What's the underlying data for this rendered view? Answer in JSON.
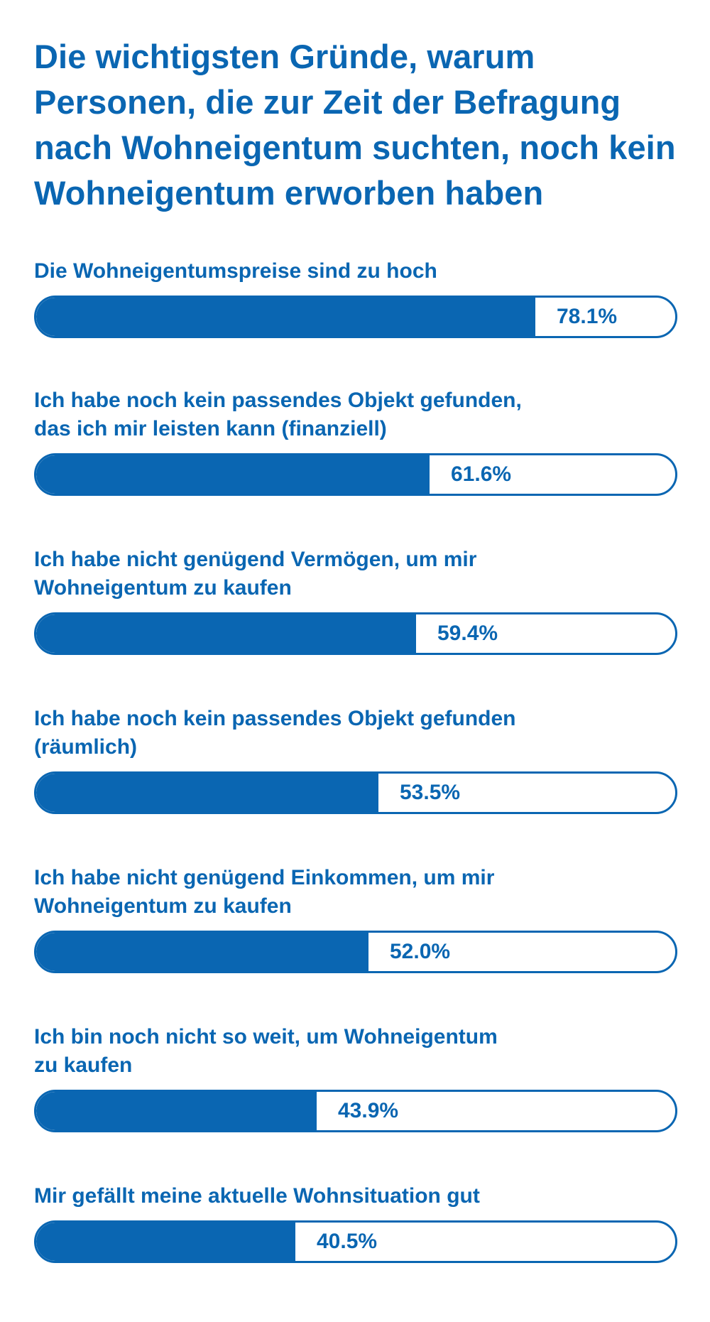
{
  "colors": {
    "accent": "#0a66b2",
    "background": "#ffffff"
  },
  "chart_data": {
    "type": "bar",
    "orientation": "horizontal",
    "title": "Die wichtigsten Gründe, warum Personen, die zur Zeit der Befragung nach Wohneigentum suchten, noch kein Wohneigentum erworben haben",
    "unit": "%",
    "xlim": [
      0,
      100
    ],
    "grid": false,
    "categories": [
      "Die Wohneigentumspreise sind zu hoch",
      "Ich habe noch kein passendes Objekt gefunden,\ndas ich mir leisten kann (finanziell)",
      "Ich habe nicht genügend Vermögen, um mir\nWohneigentum zu kaufen",
      "Ich habe noch kein passendes Objekt gefunden\n(räumlich)",
      "Ich habe nicht genügend Einkommen, um mir\nWohneigentum zu kaufen",
      "Ich bin noch nicht so weit, um Wohneigentum\nzu kaufen",
      "Mir gefällt meine aktuelle Wohnsituation gut"
    ],
    "values": [
      78.1,
      61.6,
      59.4,
      53.5,
      52.0,
      43.9,
      40.5
    ],
    "value_labels": [
      "78.1%",
      "61.6%",
      "59.4%",
      "53.5%",
      "52.0%",
      "43.9%",
      "40.5%"
    ]
  }
}
